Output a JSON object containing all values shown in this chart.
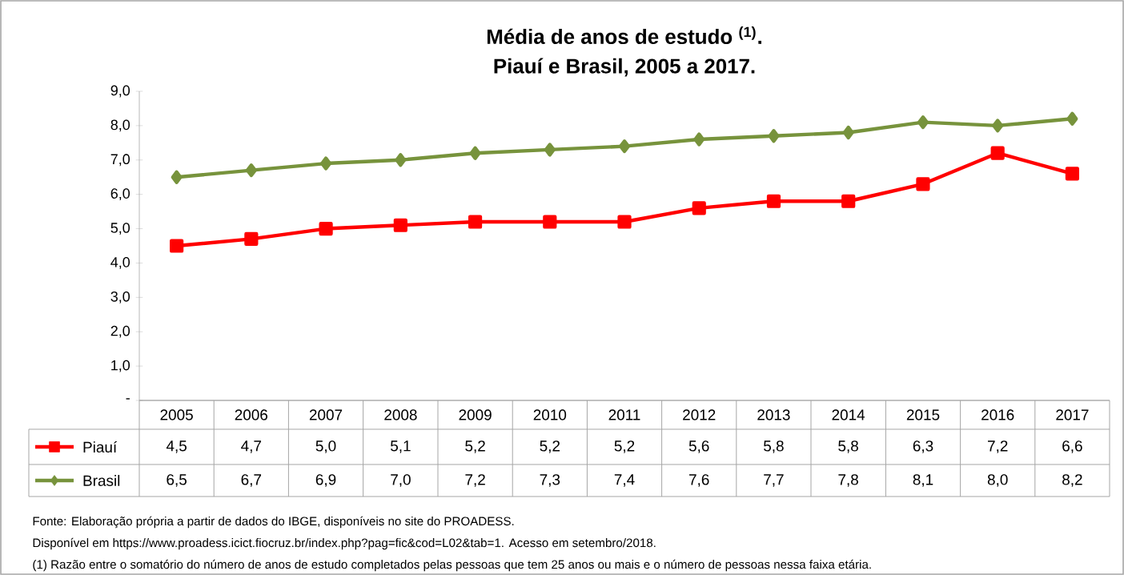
{
  "chart_data": {
    "type": "line",
    "title": "Média de anos de estudo $^{(1)}$.",
    "subtitle": "Piauí e Brasil, 2005 a 2017.",
    "categories": [
      "2005",
      "2006",
      "2007",
      "2008",
      "2009",
      "2010",
      "2011",
      "2012",
      "2013",
      "2014",
      "2015",
      "2016",
      "2017"
    ],
    "series": [
      {
        "name": "Piauí",
        "color": "#ff0000",
        "marker": "square",
        "values": [
          4.5,
          4.7,
          5.0,
          5.1,
          5.2,
          5.2,
          5.2,
          5.6,
          5.8,
          5.8,
          6.3,
          7.2,
          6.6
        ],
        "value_labels": [
          "4,5",
          "4,7",
          "5,0",
          "5,1",
          "5,2",
          "5,2",
          "5,2",
          "5,6",
          "5,8",
          "5,8",
          "6,3",
          "7,2",
          "6,6"
        ]
      },
      {
        "name": "Brasil",
        "color": "#77933c",
        "marker": "diamond",
        "values": [
          6.5,
          6.7,
          6.9,
          7.0,
          7.2,
          7.3,
          7.4,
          7.6,
          7.7,
          7.8,
          8.1,
          8.0,
          8.2
        ],
        "value_labels": [
          "6,5",
          "6,7",
          "6,9",
          "7,0",
          "7,2",
          "7,3",
          "7,4",
          "7,6",
          "7,7",
          "7,8",
          "8,1",
          "8,0",
          "8,2"
        ]
      }
    ],
    "ylim": [
      0,
      9
    ],
    "yticks": [
      {
        "value": 0,
        "label": "-"
      },
      {
        "value": 1,
        "label": "1,0"
      },
      {
        "value": 2,
        "label": "2,0"
      },
      {
        "value": 3,
        "label": "3,0"
      },
      {
        "value": 4,
        "label": "4,0"
      },
      {
        "value": 5,
        "label": "5,0"
      },
      {
        "value": 6,
        "label": "6,0"
      },
      {
        "value": 7,
        "label": "7,0"
      },
      {
        "value": 8,
        "label": "8,0"
      },
      {
        "value": 9,
        "label": "9,0"
      }
    ],
    "grid": false,
    "legend": "bottom",
    "line_style": "solid",
    "annotations": [
      "Fonte: Elaboração própria a partir de dados do IBGE, disponíveis no site do PROADESS.",
      "Disponível em https://www.proadess.icict.fiocruz.br/index.php?pag=fic&cod=L02&tab=1. Acesso em setembro/2018.",
      "(1) Razão entre o somatório do número de anos de estudo completados pelas pessoas que tem 25 anos ou mais e o número de pessoas nessa faixa etária."
    ]
  }
}
